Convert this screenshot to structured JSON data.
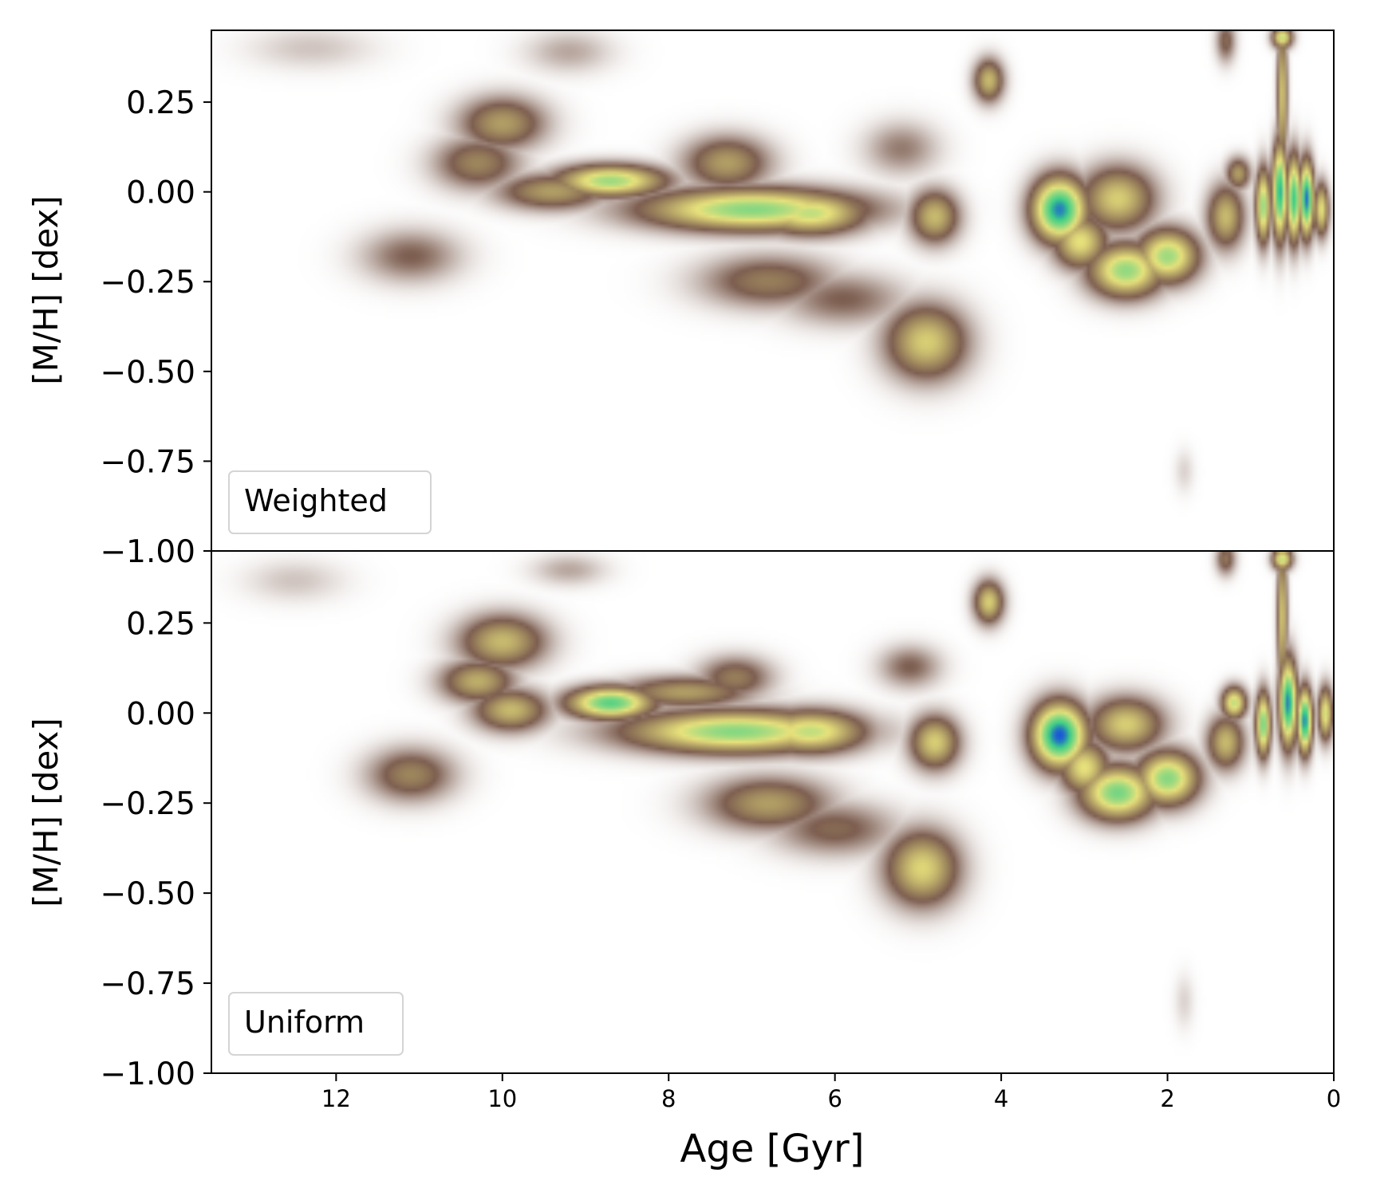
{
  "chart_data": [
    {
      "type": "heatmap",
      "panel_label": "Weighted",
      "ylabel": "[M/H] [dex]",
      "xlabel": "",
      "xlim": [
        13.5,
        0
      ],
      "ylim": [
        -1.0,
        0.45
      ],
      "xticks": [],
      "yticks": [
        0.25,
        0.0,
        -0.25,
        -0.5,
        -0.75,
        -1.0
      ],
      "ytick_labels": [
        "0.25",
        "0.00",
        "−0.25",
        "−0.50",
        "−0.75",
        "−1.00"
      ],
      "grid": false,
      "colormap": [
        "#ffffff",
        "#7d5e50",
        "#e8e27c",
        "#3ccf85",
        "#1a55d8"
      ],
      "blobs": [
        {
          "age": 10.0,
          "mh": 0.19,
          "sa": 0.35,
          "sm": 0.05,
          "v": 0.38
        },
        {
          "age": 10.3,
          "mh": 0.08,
          "sa": 0.35,
          "sm": 0.05,
          "v": 0.32
        },
        {
          "age": 9.2,
          "mh": 0.39,
          "sa": 0.35,
          "sm": 0.04,
          "v": 0.12
        },
        {
          "age": 12.3,
          "mh": 0.4,
          "sa": 0.5,
          "sm": 0.04,
          "v": 0.08
        },
        {
          "age": 8.7,
          "mh": 0.03,
          "sa": 0.45,
          "sm": 0.03,
          "v": 0.68
        },
        {
          "age": 9.4,
          "mh": 0.0,
          "sa": 0.45,
          "sm": 0.035,
          "v": 0.38
        },
        {
          "age": 7.3,
          "mh": 0.08,
          "sa": 0.35,
          "sm": 0.05,
          "v": 0.38
        },
        {
          "age": 7.0,
          "mh": -0.05,
          "sa": 0.9,
          "sm": 0.04,
          "v": 0.72
        },
        {
          "age": 6.3,
          "mh": -0.06,
          "sa": 0.45,
          "sm": 0.04,
          "v": 0.62
        },
        {
          "age": 11.1,
          "mh": -0.18,
          "sa": 0.4,
          "sm": 0.05,
          "v": 0.22
        },
        {
          "age": 6.8,
          "mh": -0.25,
          "sa": 0.55,
          "sm": 0.05,
          "v": 0.3
        },
        {
          "age": 5.9,
          "mh": -0.3,
          "sa": 0.5,
          "sm": 0.05,
          "v": 0.22
        },
        {
          "age": 5.2,
          "mh": 0.12,
          "sa": 0.3,
          "sm": 0.05,
          "v": 0.18
        },
        {
          "age": 4.8,
          "mh": -0.07,
          "sa": 0.2,
          "sm": 0.05,
          "v": 0.45
        },
        {
          "age": 4.9,
          "mh": -0.42,
          "sa": 0.33,
          "sm": 0.07,
          "v": 0.5
        },
        {
          "age": 4.15,
          "mh": 0.31,
          "sa": 0.12,
          "sm": 0.04,
          "v": 0.45
        },
        {
          "age": 3.3,
          "mh": -0.05,
          "sa": 0.22,
          "sm": 0.06,
          "v": 0.95
        },
        {
          "age": 3.05,
          "mh": -0.14,
          "sa": 0.22,
          "sm": 0.05,
          "v": 0.55
        },
        {
          "age": 2.6,
          "mh": -0.02,
          "sa": 0.3,
          "sm": 0.06,
          "v": 0.5
        },
        {
          "age": 2.5,
          "mh": -0.22,
          "sa": 0.3,
          "sm": 0.05,
          "v": 0.7
        },
        {
          "age": 2.0,
          "mh": -0.18,
          "sa": 0.25,
          "sm": 0.05,
          "v": 0.68
        },
        {
          "age": 1.3,
          "mh": -0.07,
          "sa": 0.15,
          "sm": 0.06,
          "v": 0.45
        },
        {
          "age": 1.15,
          "mh": 0.05,
          "sa": 0.1,
          "sm": 0.03,
          "v": 0.38
        },
        {
          "age": 0.85,
          "mh": -0.04,
          "sa": 0.06,
          "sm": 0.07,
          "v": 0.7
        },
        {
          "age": 0.65,
          "mh": 0.0,
          "sa": 0.06,
          "sm": 0.09,
          "v": 0.9
        },
        {
          "age": 0.48,
          "mh": -0.02,
          "sa": 0.06,
          "sm": 0.08,
          "v": 0.85
        },
        {
          "age": 0.33,
          "mh": -0.02,
          "sa": 0.06,
          "sm": 0.07,
          "v": 0.97
        },
        {
          "age": 0.15,
          "mh": -0.05,
          "sa": 0.06,
          "sm": 0.05,
          "v": 0.55
        },
        {
          "age": 0.62,
          "mh": 0.27,
          "sa": 0.04,
          "sm": 0.14,
          "v": 0.5
        },
        {
          "age": 0.62,
          "mh": 0.43,
          "sa": 0.08,
          "sm": 0.02,
          "v": 0.62
        },
        {
          "age": 1.3,
          "mh": 0.42,
          "sa": 0.08,
          "sm": 0.04,
          "v": 0.25
        },
        {
          "age": 1.8,
          "mh": -0.78,
          "sa": 0.08,
          "sm": 0.04,
          "v": 0.06
        }
      ]
    },
    {
      "type": "heatmap",
      "panel_label": "Uniform",
      "ylabel": "[M/H] [dex]",
      "xlabel": "Age [Gyr]",
      "xlim": [
        13.5,
        0
      ],
      "ylim": [
        -1.0,
        0.45
      ],
      "xticks": [
        12,
        10,
        8,
        6,
        4,
        2,
        0
      ],
      "xtick_labels": [
        "12",
        "10",
        "8",
        "6",
        "4",
        "2",
        "0"
      ],
      "yticks": [
        0.25,
        0.0,
        -0.25,
        -0.5,
        -0.75,
        -1.0
      ],
      "ytick_labels": [
        "0.25",
        "0.00",
        "−0.25",
        "−0.50",
        "−0.75",
        "−1.00"
      ],
      "grid": false,
      "colormap": [
        "#ffffff",
        "#7d5e50",
        "#e8e27c",
        "#3ccf85",
        "#1a55d8"
      ],
      "blobs": [
        {
          "age": 10.0,
          "mh": 0.2,
          "sa": 0.35,
          "sm": 0.05,
          "v": 0.45
        },
        {
          "age": 10.3,
          "mh": 0.09,
          "sa": 0.3,
          "sm": 0.04,
          "v": 0.42
        },
        {
          "age": 9.9,
          "mh": 0.01,
          "sa": 0.3,
          "sm": 0.04,
          "v": 0.45
        },
        {
          "age": 9.2,
          "mh": 0.4,
          "sa": 0.3,
          "sm": 0.03,
          "v": 0.12
        },
        {
          "age": 12.5,
          "mh": 0.37,
          "sa": 0.4,
          "sm": 0.04,
          "v": 0.08
        },
        {
          "age": 8.7,
          "mh": 0.03,
          "sa": 0.35,
          "sm": 0.03,
          "v": 0.8
        },
        {
          "age": 7.8,
          "mh": 0.06,
          "sa": 0.55,
          "sm": 0.03,
          "v": 0.38
        },
        {
          "age": 7.2,
          "mh": 0.1,
          "sa": 0.3,
          "sm": 0.04,
          "v": 0.3
        },
        {
          "age": 7.2,
          "mh": -0.05,
          "sa": 0.9,
          "sm": 0.04,
          "v": 0.72
        },
        {
          "age": 6.3,
          "mh": -0.05,
          "sa": 0.45,
          "sm": 0.04,
          "v": 0.62
        },
        {
          "age": 11.1,
          "mh": -0.17,
          "sa": 0.35,
          "sm": 0.05,
          "v": 0.32
        },
        {
          "age": 6.8,
          "mh": -0.25,
          "sa": 0.5,
          "sm": 0.05,
          "v": 0.38
        },
        {
          "age": 6.0,
          "mh": -0.32,
          "sa": 0.5,
          "sm": 0.05,
          "v": 0.25
        },
        {
          "age": 5.1,
          "mh": 0.13,
          "sa": 0.25,
          "sm": 0.04,
          "v": 0.22
        },
        {
          "age": 4.8,
          "mh": -0.08,
          "sa": 0.2,
          "sm": 0.05,
          "v": 0.5
        },
        {
          "age": 4.95,
          "mh": -0.43,
          "sa": 0.3,
          "sm": 0.07,
          "v": 0.52
        },
        {
          "age": 4.15,
          "mh": 0.31,
          "sa": 0.12,
          "sm": 0.04,
          "v": 0.5
        },
        {
          "age": 3.3,
          "mh": -0.06,
          "sa": 0.22,
          "sm": 0.06,
          "v": 1.0
        },
        {
          "age": 3.0,
          "mh": -0.15,
          "sa": 0.2,
          "sm": 0.05,
          "v": 0.55
        },
        {
          "age": 2.5,
          "mh": -0.03,
          "sa": 0.3,
          "sm": 0.05,
          "v": 0.5
        },
        {
          "age": 2.6,
          "mh": -0.22,
          "sa": 0.3,
          "sm": 0.05,
          "v": 0.75
        },
        {
          "age": 2.0,
          "mh": -0.18,
          "sa": 0.25,
          "sm": 0.05,
          "v": 0.72
        },
        {
          "age": 1.3,
          "mh": -0.08,
          "sa": 0.15,
          "sm": 0.05,
          "v": 0.45
        },
        {
          "age": 1.2,
          "mh": 0.03,
          "sa": 0.1,
          "sm": 0.03,
          "v": 0.62
        },
        {
          "age": 0.85,
          "mh": -0.03,
          "sa": 0.06,
          "sm": 0.06,
          "v": 0.75
        },
        {
          "age": 0.55,
          "mh": 0.03,
          "sa": 0.07,
          "sm": 0.08,
          "v": 0.95
        },
        {
          "age": 0.35,
          "mh": -0.02,
          "sa": 0.06,
          "sm": 0.06,
          "v": 0.95
        },
        {
          "age": 0.1,
          "mh": 0.0,
          "sa": 0.06,
          "sm": 0.05,
          "v": 0.58
        },
        {
          "age": 0.62,
          "mh": 0.27,
          "sa": 0.04,
          "sm": 0.14,
          "v": 0.5
        },
        {
          "age": 0.62,
          "mh": 0.43,
          "sa": 0.08,
          "sm": 0.02,
          "v": 0.62
        },
        {
          "age": 1.3,
          "mh": 0.43,
          "sa": 0.08,
          "sm": 0.03,
          "v": 0.28
        },
        {
          "age": 1.8,
          "mh": -0.8,
          "sa": 0.08,
          "sm": 0.05,
          "v": 0.06
        }
      ]
    }
  ]
}
